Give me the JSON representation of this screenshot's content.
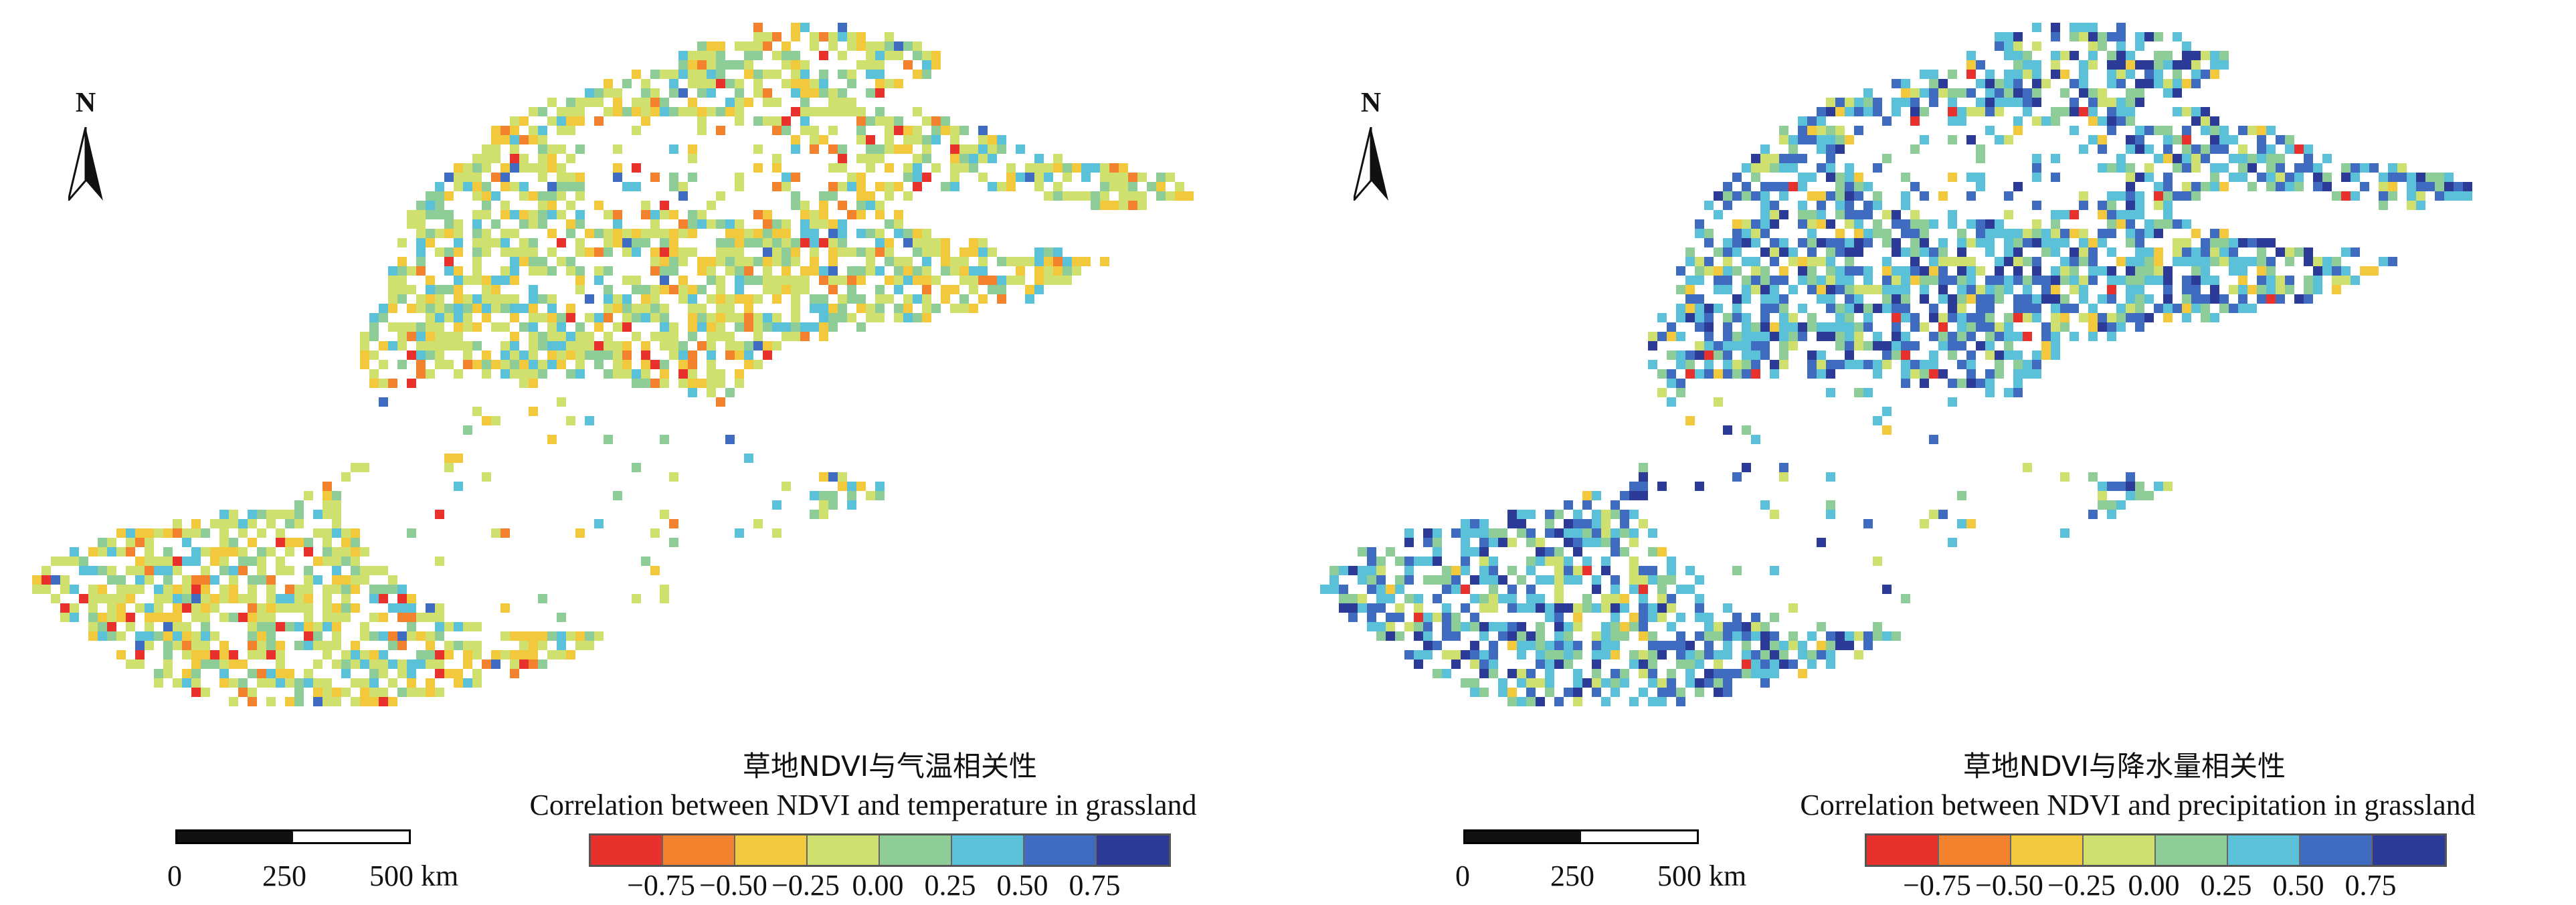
{
  "panels": [
    {
      "north_label": "N",
      "scale_labels": [
        "0",
        "250",
        "500 km"
      ],
      "title_cn": "草地NDVI与气温相关性",
      "title_en": "Correlation between NDVI and temperature in grassland",
      "legend_ticks": [
        "−0.75",
        "−0.50",
        "−0.25",
        "0.00",
        "0.25",
        "0.50",
        "0.75"
      ]
    },
    {
      "north_label": "N",
      "scale_labels": [
        "0",
        "250",
        "500 km"
      ],
      "title_cn": "草地NDVI与降水量相关性",
      "title_en": "Correlation between NDVI and precipitation in grassland",
      "legend_ticks": [
        "−0.75",
        "−0.50",
        "−0.25",
        "0.00",
        "0.25",
        "0.50",
        "0.75"
      ]
    }
  ],
  "legend_colors": [
    "#e8302c",
    "#f3822f",
    "#f2c93c",
    "#cfe06e",
    "#8fcd98",
    "#5ac1d8",
    "#3f6cc0",
    "#2c3a98"
  ],
  "map_colors": {
    "temperature": [
      "#cfe06e",
      "#f2c93c",
      "#8fcd98",
      "#5ac1d8",
      "#f3822f",
      "#e8302c",
      "#3f6cc0"
    ],
    "precipitation": [
      "#5ac1d8",
      "#3f6cc0",
      "#2c3a98",
      "#8fcd98",
      "#cfe06e",
      "#f2c93c",
      "#e8302c"
    ]
  }
}
